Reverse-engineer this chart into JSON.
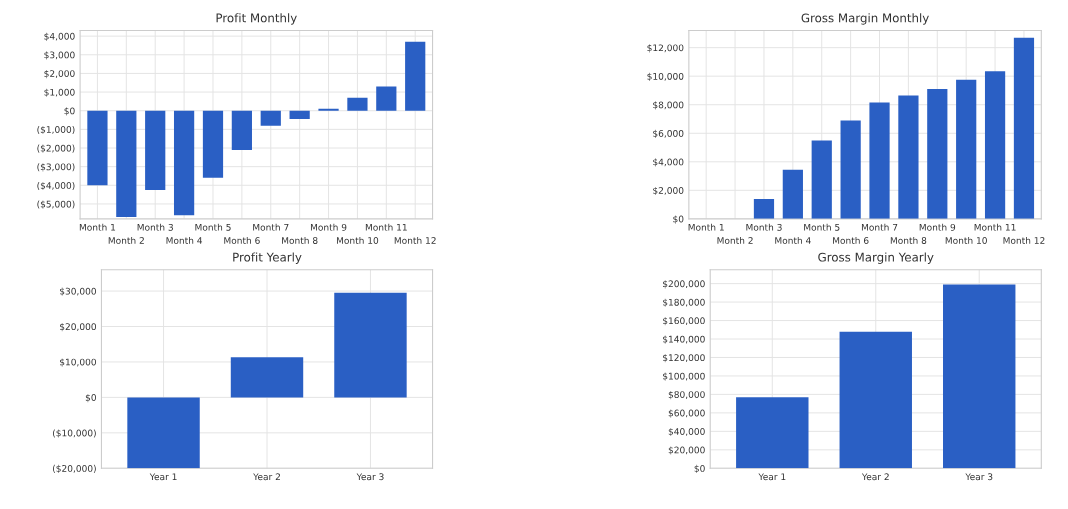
{
  "chart_data": [
    {
      "type": "bar",
      "title": "Profit Monthly",
      "categories": [
        "Month 1",
        "Month 2",
        "Month 3",
        "Month 4",
        "Month 5",
        "Month 6",
        "Month 7",
        "Month 8",
        "Month 9",
        "Month 10",
        "Month 11",
        "Month 12"
      ],
      "values": [
        -4000,
        -5700,
        -4250,
        -5600,
        -3600,
        -2100,
        -800,
        -450,
        100,
        700,
        1300,
        3700
      ],
      "color": "#2a5fc4",
      "ylim": [
        -5800,
        4300
      ],
      "yticks": [
        {
          "value": 4000,
          "label": "$4,000"
        },
        {
          "value": 3000,
          "label": "$3,000"
        },
        {
          "value": 2000,
          "label": "$2,000"
        },
        {
          "value": 1000,
          "label": "$1,000"
        },
        {
          "value": 0,
          "label": "$0"
        },
        {
          "value": -1000,
          "label": "($1,000)"
        },
        {
          "value": -2000,
          "label": "($2,000)"
        },
        {
          "value": -3000,
          "label": "($3,000)"
        },
        {
          "value": -4000,
          "label": "($4,000)"
        },
        {
          "value": -5000,
          "label": "($5,000)"
        }
      ],
      "grid": true
    },
    {
      "type": "bar",
      "title": "Gross Margin Monthly",
      "categories": [
        "Month 1",
        "Month 2",
        "Month 3",
        "Month 4",
        "Month 5",
        "Month 6",
        "Month 7",
        "Month 8",
        "Month 9",
        "Month 10",
        "Month 11",
        "Month 12"
      ],
      "values": [
        0,
        0,
        1400,
        3450,
        5500,
        6900,
        8150,
        8650,
        9100,
        9750,
        10350,
        12700
      ],
      "color": "#2a5fc4",
      "ylim": [
        0,
        13200
      ],
      "yticks": [
        {
          "value": 0,
          "label": "$0"
        },
        {
          "value": 2000,
          "label": "$2,000"
        },
        {
          "value": 4000,
          "label": "$4,000"
        },
        {
          "value": 6000,
          "label": "$6,000"
        },
        {
          "value": 8000,
          "label": "$8,000"
        },
        {
          "value": 10000,
          "label": "$10,000"
        },
        {
          "value": 12000,
          "label": "$12,000"
        }
      ],
      "grid": true
    },
    {
      "type": "bar",
      "title": "Profit Yearly",
      "categories": [
        "Year 1",
        "Year 2",
        "Year 3"
      ],
      "values": [
        -20000,
        11300,
        29500
      ],
      "color": "#2a5fc4",
      "ylim": [
        -20000,
        36000
      ],
      "yticks": [
        {
          "value": -20000,
          "label": "($20,000)"
        },
        {
          "value": -10000,
          "label": "($10,000)"
        },
        {
          "value": 0,
          "label": "$0"
        },
        {
          "value": 10000,
          "label": "$10,000"
        },
        {
          "value": 20000,
          "label": "$20,000"
        },
        {
          "value": 30000,
          "label": "$30,000"
        }
      ],
      "grid": true
    },
    {
      "type": "bar",
      "title": "Gross Margin Yearly",
      "categories": [
        "Year 1",
        "Year 2",
        "Year 3"
      ],
      "values": [
        77000,
        148000,
        199000
      ],
      "color": "#2a5fc4",
      "ylim": [
        0,
        215000
      ],
      "yticks": [
        {
          "value": 0,
          "label": "$0"
        },
        {
          "value": 20000,
          "label": "$20,000"
        },
        {
          "value": 40000,
          "label": "$40,000"
        },
        {
          "value": 60000,
          "label": "$60,000"
        },
        {
          "value": 80000,
          "label": "$80,000"
        },
        {
          "value": 100000,
          "label": "$100,000"
        },
        {
          "value": 120000,
          "label": "$120,000"
        },
        {
          "value": 140000,
          "label": "$140,000"
        },
        {
          "value": 160000,
          "label": "$160,000"
        },
        {
          "value": 180000,
          "label": "$180,000"
        },
        {
          "value": 200000,
          "label": "$200,000"
        }
      ],
      "grid": true
    }
  ]
}
